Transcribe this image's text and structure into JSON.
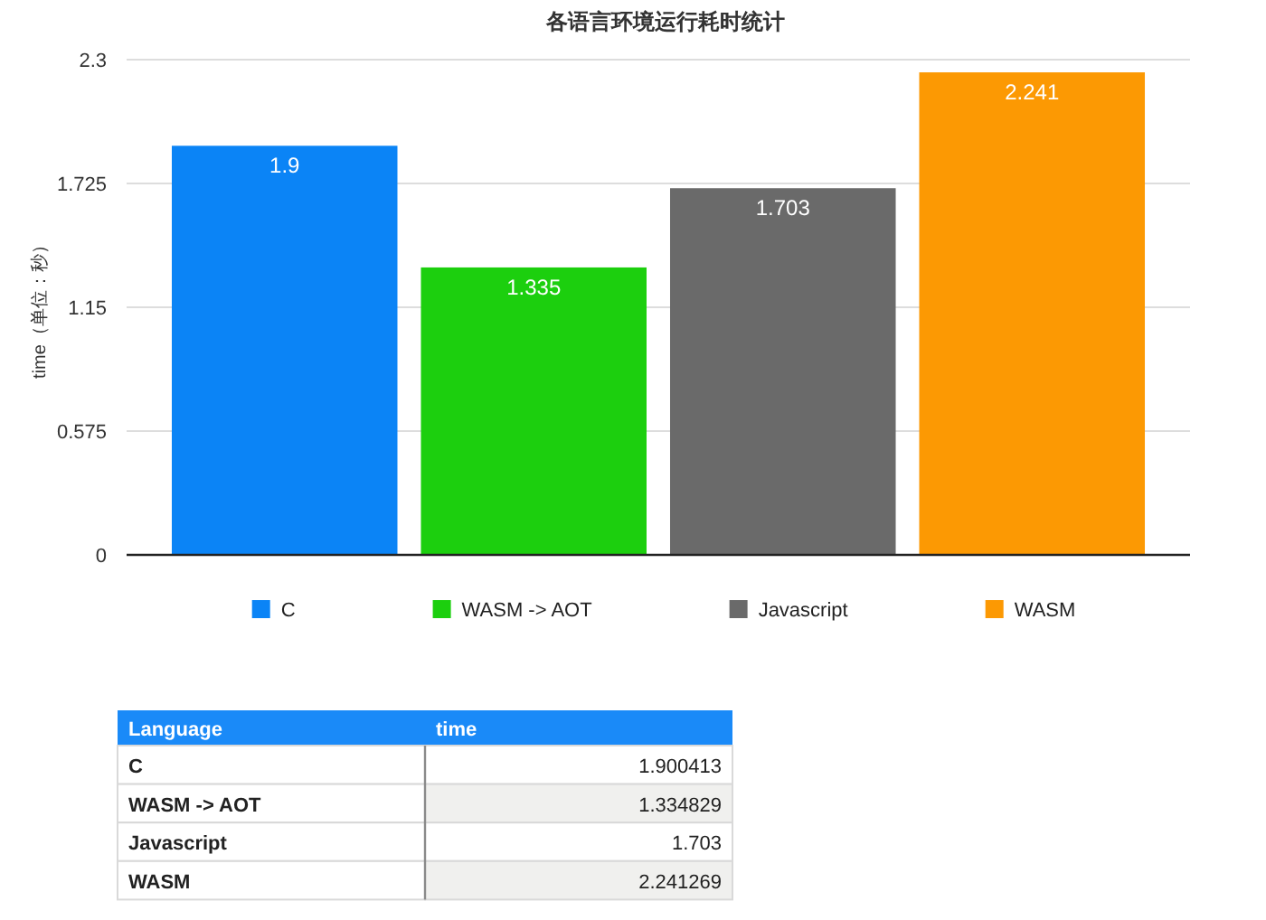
{
  "chart_data": [
    {
      "type": "bar",
      "title": "各语言环境运行耗时统计",
      "ylabel": "time（单位：秒）",
      "categories": [
        null
      ],
      "series": [
        {
          "name": "C",
          "color": "#0b84f6",
          "values": [
            1.9
          ]
        },
        {
          "name": "WASM -> AOT",
          "color": "#1ccf0e",
          "values": [
            1.335
          ]
        },
        {
          "name": "Javascript",
          "color": "#6a6a6a",
          "values": [
            1.703
          ]
        },
        {
          "name": "WASM",
          "color": "#fc9903",
          "values": [
            2.241
          ]
        }
      ],
      "ylim": [
        0,
        2.3
      ],
      "yticks": [
        0,
        0.575,
        1.15,
        1.725,
        2.3
      ],
      "grid": "y",
      "legend": "bottom",
      "data_labels": true
    },
    {
      "type": "other",
      "annotations": [
        "Language",
        "time"
      ],
      "categories": [
        "C",
        "WASM -> AOT",
        "Javascript",
        "WASM"
      ],
      "values": [
        1.900413,
        1.334829,
        1.703,
        2.241269
      ],
      "data_labels": true
    }
  ]
}
